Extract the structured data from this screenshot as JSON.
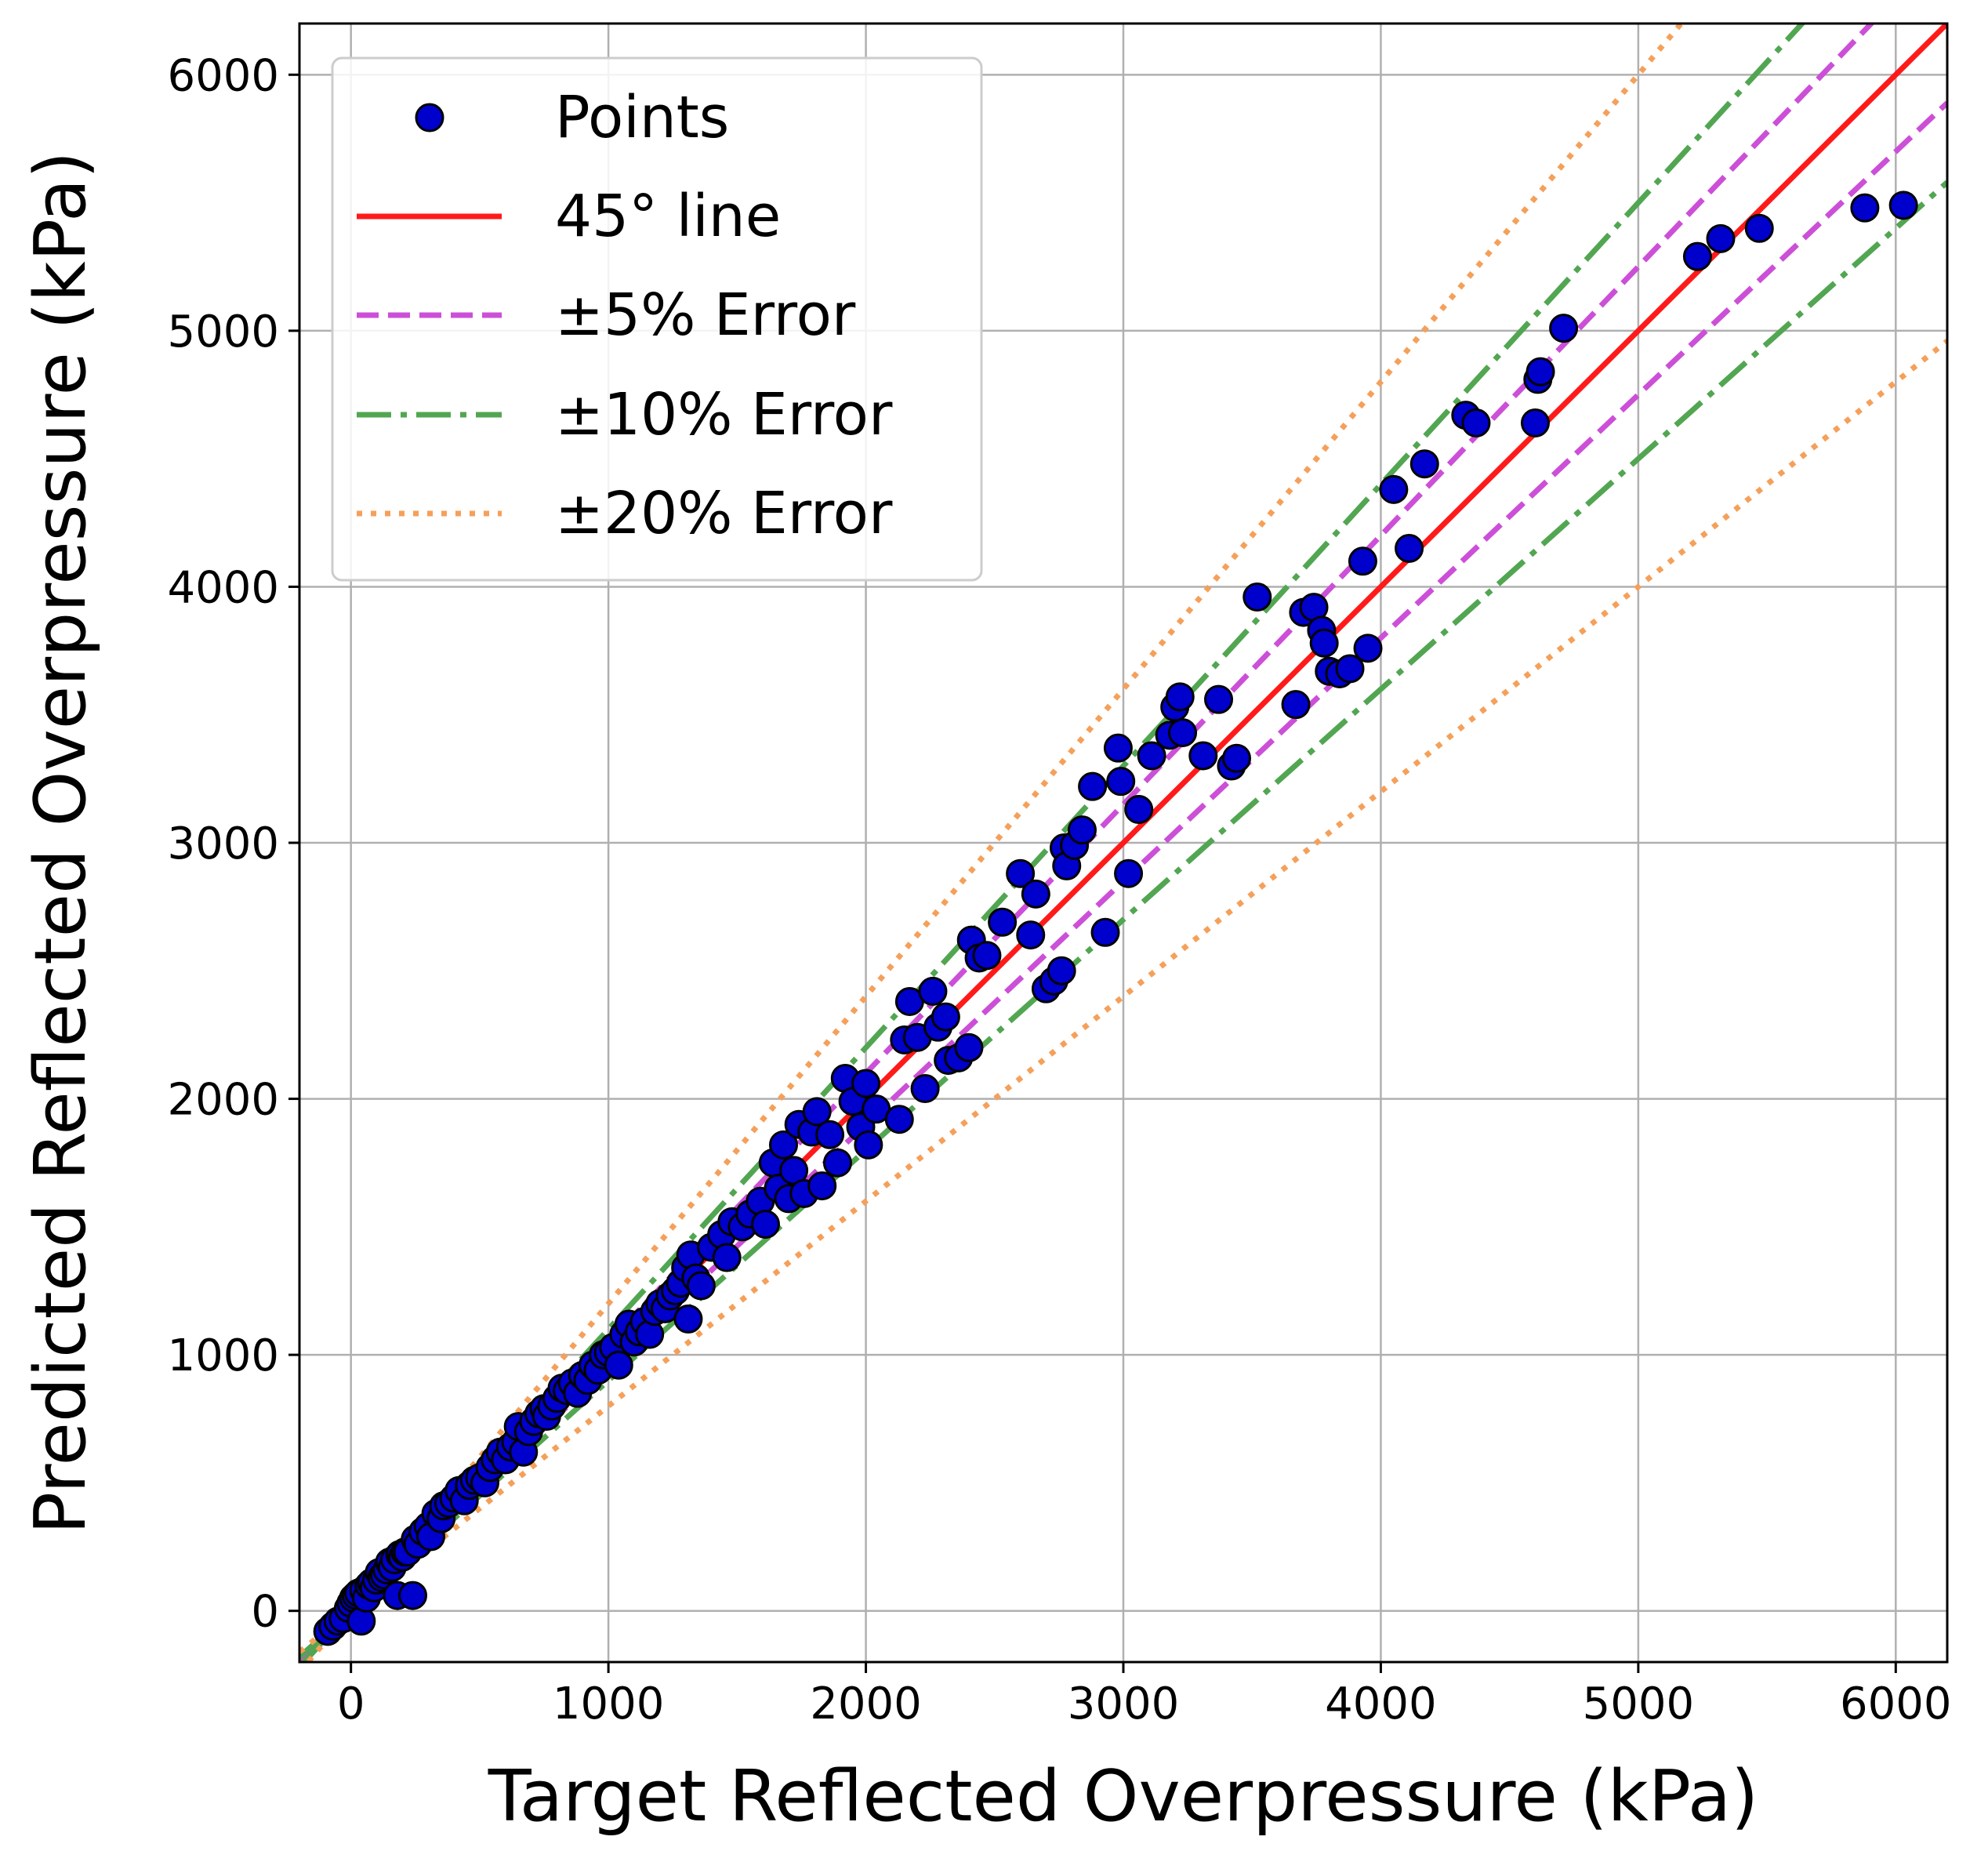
{
  "chart_data": {
    "type": "scatter",
    "xlabel": "Target Reflected Overpressure (kPa)",
    "ylabel": "Predicted Reflected Overpressure (kPa)",
    "xlim": [
      -200,
      6200
    ],
    "ylim": [
      -200,
      6200
    ],
    "xticks": [
      "0",
      "1000",
      "2000",
      "3000",
      "4000",
      "5000",
      "6000"
    ],
    "yticks": [
      "0",
      "1000",
      "2000",
      "3000",
      "4000",
      "5000",
      "6000"
    ],
    "grid": true,
    "legend_position": "top-left",
    "legend": {
      "points": "Points",
      "line45": "45° line",
      "err5": "±5% Error",
      "err10": "±10% Error",
      "err20": "±20% Error"
    },
    "colors": {
      "points": "#0000cc",
      "line45": "#ff1a1a",
      "err5": "#cc4fd8",
      "err10": "#52a652",
      "err20": "#f5a05a"
    },
    "reference_lines": [
      {
        "key": "line45",
        "slopes": [
          1.0
        ],
        "style": "solid"
      },
      {
        "key": "err5",
        "slopes": [
          1.05,
          0.95
        ],
        "style": "dashed"
      },
      {
        "key": "err10",
        "slopes": [
          1.1,
          0.9
        ],
        "style": "dashdot"
      },
      {
        "key": "err20",
        "slopes": [
          1.2,
          0.8
        ],
        "style": "dotted"
      }
    ],
    "points": [
      [
        -90,
        -80
      ],
      [
        -70,
        -60
      ],
      [
        -50,
        -40
      ],
      [
        -30,
        -30
      ],
      [
        -10,
        10
      ],
      [
        0,
        30
      ],
      [
        10,
        50
      ],
      [
        20,
        60
      ],
      [
        30,
        70
      ],
      [
        40,
        -40
      ],
      [
        50,
        80
      ],
      [
        60,
        50
      ],
      [
        70,
        100
      ],
      [
        80,
        110
      ],
      [
        90,
        90
      ],
      [
        100,
        120
      ],
      [
        110,
        150
      ],
      [
        120,
        130
      ],
      [
        130,
        140
      ],
      [
        140,
        160
      ],
      [
        150,
        190
      ],
      [
        160,
        170
      ],
      [
        170,
        200
      ],
      [
        180,
        60
      ],
      [
        190,
        220
      ],
      [
        200,
        210
      ],
      [
        210,
        230
      ],
      [
        220,
        230
      ],
      [
        240,
        60
      ],
      [
        250,
        280
      ],
      [
        260,
        260
      ],
      [
        280,
        310
      ],
      [
        300,
        330
      ],
      [
        310,
        290
      ],
      [
        330,
        380
      ],
      [
        350,
        360
      ],
      [
        360,
        410
      ],
      [
        380,
        420
      ],
      [
        400,
        440
      ],
      [
        420,
        470
      ],
      [
        440,
        430
      ],
      [
        460,
        490
      ],
      [
        480,
        510
      ],
      [
        500,
        520
      ],
      [
        520,
        500
      ],
      [
        540,
        560
      ],
      [
        560,
        590
      ],
      [
        580,
        620
      ],
      [
        600,
        590
      ],
      [
        620,
        640
      ],
      [
        640,
        660
      ],
      [
        650,
        720
      ],
      [
        670,
        620
      ],
      [
        690,
        700
      ],
      [
        710,
        740
      ],
      [
        730,
        770
      ],
      [
        750,
        790
      ],
      [
        760,
        760
      ],
      [
        780,
        800
      ],
      [
        800,
        830
      ],
      [
        820,
        870
      ],
      [
        840,
        860
      ],
      [
        860,
        890
      ],
      [
        880,
        850
      ],
      [
        900,
        920
      ],
      [
        920,
        900
      ],
      [
        940,
        960
      ],
      [
        960,
        940
      ],
      [
        980,
        1000
      ],
      [
        1000,
        1010
      ],
      [
        1020,
        1030
      ],
      [
        1040,
        960
      ],
      [
        1060,
        1080
      ],
      [
        1080,
        1120
      ],
      [
        1100,
        1050
      ],
      [
        1120,
        1090
      ],
      [
        1140,
        1130
      ],
      [
        1160,
        1080
      ],
      [
        1180,
        1170
      ],
      [
        1200,
        1200
      ],
      [
        1220,
        1180
      ],
      [
        1240,
        1230
      ],
      [
        1260,
        1250
      ],
      [
        1280,
        1280
      ],
      [
        1300,
        1340
      ],
      [
        1310,
        1140
      ],
      [
        1320,
        1390
      ],
      [
        1340,
        1300
      ],
      [
        1360,
        1270
      ],
      [
        1400,
        1420
      ],
      [
        1440,
        1470
      ],
      [
        1460,
        1380
      ],
      [
        1480,
        1520
      ],
      [
        1520,
        1500
      ],
      [
        1550,
        1550
      ],
      [
        1590,
        1600
      ],
      [
        1610,
        1510
      ],
      [
        1640,
        1750
      ],
      [
        1660,
        1650
      ],
      [
        1680,
        1820
      ],
      [
        1700,
        1610
      ],
      [
        1720,
        1720
      ],
      [
        1740,
        1900
      ],
      [
        1760,
        1630
      ],
      [
        1790,
        1870
      ],
      [
        1810,
        1950
      ],
      [
        1830,
        1660
      ],
      [
        1860,
        1860
      ],
      [
        1890,
        1750
      ],
      [
        1920,
        2080
      ],
      [
        1950,
        1990
      ],
      [
        1980,
        1890
      ],
      [
        2000,
        2060
      ],
      [
        2010,
        1820
      ],
      [
        2040,
        1960
      ],
      [
        2130,
        1920
      ],
      [
        2150,
        2230
      ],
      [
        2170,
        2380
      ],
      [
        2200,
        2240
      ],
      [
        2230,
        2040
      ],
      [
        2260,
        2420
      ],
      [
        2280,
        2280
      ],
      [
        2310,
        2320
      ],
      [
        2320,
        2150
      ],
      [
        2360,
        2160
      ],
      [
        2400,
        2200
      ],
      [
        2410,
        2620
      ],
      [
        2440,
        2550
      ],
      [
        2470,
        2560
      ],
      [
        2530,
        2690
      ],
      [
        2600,
        2880
      ],
      [
        2640,
        2640
      ],
      [
        2660,
        2800
      ],
      [
        2700,
        2430
      ],
      [
        2730,
        2460
      ],
      [
        2760,
        2500
      ],
      [
        2770,
        2980
      ],
      [
        2780,
        2910
      ],
      [
        2810,
        2990
      ],
      [
        2840,
        3050
      ],
      [
        2880,
        3220
      ],
      [
        2930,
        2650
      ],
      [
        2980,
        3370
      ],
      [
        2990,
        3240
      ],
      [
        3020,
        2880
      ],
      [
        3060,
        3130
      ],
      [
        3110,
        3340
      ],
      [
        3180,
        3420
      ],
      [
        3200,
        3530
      ],
      [
        3220,
        3570
      ],
      [
        3230,
        3430
      ],
      [
        3310,
        3340
      ],
      [
        3370,
        3560
      ],
      [
        3420,
        3300
      ],
      [
        3440,
        3330
      ],
      [
        3520,
        3960
      ],
      [
        3670,
        3540
      ],
      [
        3700,
        3900
      ],
      [
        3740,
        3920
      ],
      [
        3770,
        3830
      ],
      [
        3780,
        3780
      ],
      [
        3800,
        3670
      ],
      [
        3840,
        3660
      ],
      [
        3880,
        3680
      ],
      [
        3930,
        4100
      ],
      [
        3950,
        3760
      ],
      [
        4050,
        4380
      ],
      [
        4110,
        4150
      ],
      [
        4170,
        4480
      ],
      [
        4330,
        4670
      ],
      [
        4370,
        4640
      ],
      [
        4600,
        4640
      ],
      [
        4610,
        4810
      ],
      [
        4620,
        4840
      ],
      [
        4710,
        5010
      ],
      [
        5230,
        5290
      ],
      [
        5320,
        5360
      ],
      [
        5470,
        5400
      ],
      [
        5880,
        5480
      ],
      [
        6030,
        5490
      ]
    ]
  }
}
